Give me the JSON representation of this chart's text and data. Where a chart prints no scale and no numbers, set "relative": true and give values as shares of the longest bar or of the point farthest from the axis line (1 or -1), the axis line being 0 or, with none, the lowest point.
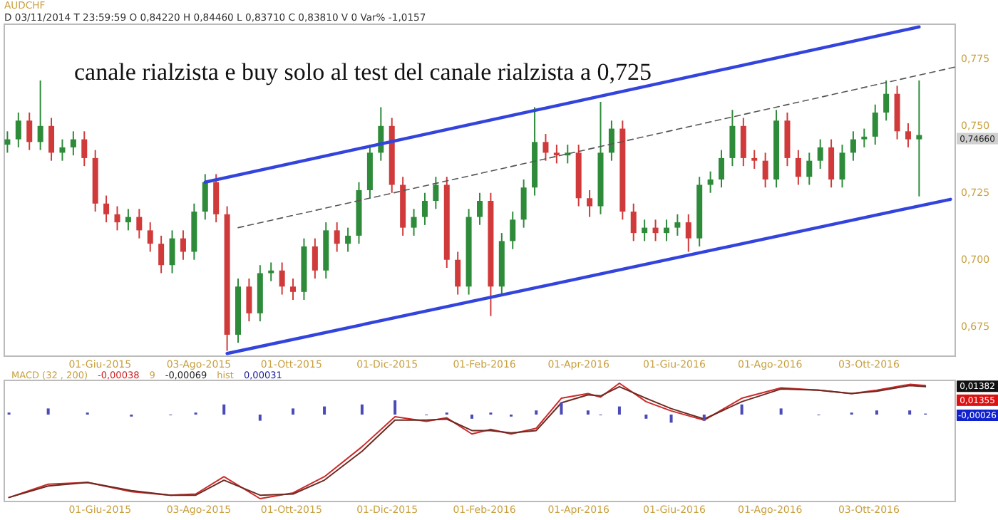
{
  "chart_data": [
    {
      "type": "candlestick",
      "title": "canale rialzista e buy solo al test del canale rialzista a 0,725",
      "annotations": [
        "AUDCHF",
        "D 03/11/2014 T 23:59:59 O 0,84220 H 0,84460 L 0,83710 C 0,83810 V 0 Var% -1,0157",
        "0,74660"
      ],
      "x": [
        "2015-04-03",
        "2015-04-10",
        "2015-04-17",
        "2015-04-24",
        "2015-05-01",
        "2015-05-08",
        "2015-05-15",
        "2015-05-22",
        "2015-05-29",
        "2015-06-05",
        "2015-06-12",
        "2015-06-19",
        "2015-06-26",
        "2015-07-03",
        "2015-07-10",
        "2015-07-17",
        "2015-07-24",
        "2015-07-31",
        "2015-08-07",
        "2015-08-14",
        "2015-08-21",
        "2015-08-28",
        "2015-09-04",
        "2015-09-11",
        "2015-09-18",
        "2015-09-25",
        "2015-10-02",
        "2015-10-09",
        "2015-10-16",
        "2015-10-23",
        "2015-10-30",
        "2015-11-06",
        "2015-11-13",
        "2015-11-20",
        "2015-11-27",
        "2015-12-04",
        "2015-12-11",
        "2015-12-18",
        "2015-12-25",
        "2016-01-01",
        "2016-01-08",
        "2016-01-15",
        "2016-01-22",
        "2016-01-29",
        "2016-02-05",
        "2016-02-12",
        "2016-02-19",
        "2016-02-26",
        "2016-03-04",
        "2016-03-11",
        "2016-03-18",
        "2016-03-25",
        "2016-04-01",
        "2016-04-08",
        "2016-04-15",
        "2016-04-22",
        "2016-04-29",
        "2016-05-06",
        "2016-05-13",
        "2016-05-20",
        "2016-05-27",
        "2016-06-03",
        "2016-06-10",
        "2016-06-17",
        "2016-06-24",
        "2016-07-01",
        "2016-07-08",
        "2016-07-15",
        "2016-07-22",
        "2016-07-29",
        "2016-08-05",
        "2016-08-12",
        "2016-08-19",
        "2016-08-26",
        "2016-09-02",
        "2016-09-09",
        "2016-09-16",
        "2016-09-23",
        "2016-09-30",
        "2016-10-07",
        "2016-10-14",
        "2016-10-21",
        "2016-10-28",
        "2016-11-04"
      ],
      "ohlc": [
        [
          0.743,
          0.748,
          0.74,
          0.745
        ],
        [
          0.745,
          0.755,
          0.742,
          0.752
        ],
        [
          0.752,
          0.755,
          0.741,
          0.744
        ],
        [
          0.744,
          0.767,
          0.741,
          0.75
        ],
        [
          0.75,
          0.753,
          0.737,
          0.74
        ],
        [
          0.74,
          0.745,
          0.737,
          0.742
        ],
        [
          0.742,
          0.748,
          0.739,
          0.745
        ],
        [
          0.745,
          0.748,
          0.735,
          0.738
        ],
        [
          0.738,
          0.741,
          0.718,
          0.721
        ],
        [
          0.721,
          0.724,
          0.714,
          0.717
        ],
        [
          0.717,
          0.72,
          0.711,
          0.714
        ],
        [
          0.714,
          0.719,
          0.711,
          0.716
        ],
        [
          0.716,
          0.719,
          0.708,
          0.711
        ],
        [
          0.711,
          0.714,
          0.703,
          0.706
        ],
        [
          0.706,
          0.709,
          0.695,
          0.698
        ],
        [
          0.698,
          0.711,
          0.695,
          0.708
        ],
        [
          0.708,
          0.711,
          0.7,
          0.703
        ],
        [
          0.703,
          0.721,
          0.7,
          0.718
        ],
        [
          0.718,
          0.732,
          0.715,
          0.729
        ],
        [
          0.729,
          0.732,
          0.714,
          0.717
        ],
        [
          0.717,
          0.72,
          0.666,
          0.672
        ],
        [
          0.672,
          0.693,
          0.669,
          0.69
        ],
        [
          0.69,
          0.693,
          0.677,
          0.68
        ],
        [
          0.68,
          0.698,
          0.677,
          0.695
        ],
        [
          0.695,
          0.699,
          0.692,
          0.696
        ],
        [
          0.696,
          0.699,
          0.687,
          0.69
        ],
        [
          0.69,
          0.693,
          0.685,
          0.688
        ],
        [
          0.688,
          0.708,
          0.685,
          0.705
        ],
        [
          0.705,
          0.708,
          0.693,
          0.696
        ],
        [
          0.696,
          0.714,
          0.693,
          0.711
        ],
        [
          0.711,
          0.714,
          0.703,
          0.706
        ],
        [
          0.706,
          0.712,
          0.703,
          0.709
        ],
        [
          0.709,
          0.729,
          0.706,
          0.726
        ],
        [
          0.726,
          0.743,
          0.723,
          0.74
        ],
        [
          0.74,
          0.757,
          0.737,
          0.75
        ],
        [
          0.75,
          0.753,
          0.725,
          0.728
        ],
        [
          0.728,
          0.731,
          0.709,
          0.712
        ],
        [
          0.712,
          0.719,
          0.709,
          0.716
        ],
        [
          0.716,
          0.725,
          0.713,
          0.722
        ],
        [
          0.722,
          0.731,
          0.719,
          0.728
        ],
        [
          0.728,
          0.731,
          0.697,
          0.7
        ],
        [
          0.7,
          0.703,
          0.687,
          0.69
        ],
        [
          0.69,
          0.719,
          0.687,
          0.716
        ],
        [
          0.716,
          0.725,
          0.713,
          0.722
        ],
        [
          0.722,
          0.725,
          0.679,
          0.69
        ],
        [
          0.69,
          0.71,
          0.687,
          0.707
        ],
        [
          0.707,
          0.718,
          0.704,
          0.715
        ],
        [
          0.715,
          0.73,
          0.712,
          0.727
        ],
        [
          0.727,
          0.757,
          0.724,
          0.744
        ],
        [
          0.744,
          0.747,
          0.737,
          0.74
        ],
        [
          0.74,
          0.743,
          0.736,
          0.739
        ],
        [
          0.739,
          0.743,
          0.736,
          0.74
        ],
        [
          0.74,
          0.743,
          0.72,
          0.723
        ],
        [
          0.723,
          0.726,
          0.716,
          0.72
        ],
        [
          0.72,
          0.759,
          0.717,
          0.74
        ],
        [
          0.74,
          0.752,
          0.737,
          0.749
        ],
        [
          0.749,
          0.752,
          0.715,
          0.718
        ],
        [
          0.718,
          0.721,
          0.707,
          0.71
        ],
        [
          0.71,
          0.715,
          0.707,
          0.712
        ],
        [
          0.712,
          0.715,
          0.707,
          0.71
        ],
        [
          0.71,
          0.715,
          0.707,
          0.712
        ],
        [
          0.712,
          0.717,
          0.709,
          0.714
        ],
        [
          0.714,
          0.717,
          0.703,
          0.708
        ],
        [
          0.708,
          0.731,
          0.705,
          0.728
        ],
        [
          0.728,
          0.733,
          0.725,
          0.73
        ],
        [
          0.73,
          0.741,
          0.727,
          0.738
        ],
        [
          0.738,
          0.756,
          0.735,
          0.75
        ],
        [
          0.75,
          0.753,
          0.735,
          0.738
        ],
        [
          0.738,
          0.741,
          0.734,
          0.737
        ],
        [
          0.737,
          0.74,
          0.727,
          0.73
        ],
        [
          0.73,
          0.756,
          0.727,
          0.752
        ],
        [
          0.752,
          0.755,
          0.735,
          0.738
        ],
        [
          0.738,
          0.741,
          0.728,
          0.731
        ],
        [
          0.731,
          0.74,
          0.728,
          0.737
        ],
        [
          0.737,
          0.745,
          0.734,
          0.742
        ],
        [
          0.742,
          0.745,
          0.727,
          0.73
        ],
        [
          0.73,
          0.743,
          0.727,
          0.74
        ],
        [
          0.74,
          0.748,
          0.737,
          0.745
        ],
        [
          0.745,
          0.749,
          0.742,
          0.746
        ],
        [
          0.746,
          0.758,
          0.743,
          0.755
        ],
        [
          0.755,
          0.767,
          0.752,
          0.762
        ],
        [
          0.762,
          0.765,
          0.745,
          0.748
        ],
        [
          0.748,
          0.751,
          0.742,
          0.745
        ],
        [
          0.745,
          0.767,
          0.7237,
          0.7466
        ]
      ],
      "series": [
        {
          "type": "line",
          "color": "#3344dd",
          "x": [
            "2015-08-07",
            "2016-11-04"
          ],
          "values": [
            0.729,
            0.787
          ]
        },
        {
          "type": "line",
          "color": "#3344dd",
          "x": [
            "2015-08-21",
            "2016-11-24"
          ],
          "values": [
            0.665,
            0.7226
          ]
        },
        {
          "type": "line",
          "color": "#555555",
          "line_style": "dashed",
          "x": [
            "2015-08-28",
            "2016-11-27"
          ],
          "values": [
            0.712,
            0.772
          ]
        }
      ],
      "xlim": [
        "2015-04-01",
        "2016-11-27"
      ],
      "ylim": [
        0.664,
        0.788
      ],
      "xticks": [
        {
          "value": "2015-06-01",
          "label": "01-Giu-2015"
        },
        {
          "value": "2015-08-03",
          "label": "03-Ago-2015"
        },
        {
          "value": "2015-10-01",
          "label": "01-Ott-2015"
        },
        {
          "value": "2015-12-01",
          "label": "01-Dic-2015"
        },
        {
          "value": "2016-02-01",
          "label": "01-Feb-2016"
        },
        {
          "value": "2016-04-01",
          "label": "01-Apr-2016"
        },
        {
          "value": "2016-06-01",
          "label": "01-Giu-2016"
        },
        {
          "value": "2016-08-01",
          "label": "01-Ago-2016"
        },
        {
          "value": "2016-10-03",
          "label": "03-Ott-2016"
        }
      ],
      "yticks": [
        {
          "value": 0.675,
          "label": "0,675"
        },
        {
          "value": 0.7,
          "label": "0,700"
        },
        {
          "value": 0.725,
          "label": "0,725"
        },
        {
          "value": 0.75,
          "label": "0,750"
        },
        {
          "value": 0.775,
          "label": "0,775"
        }
      ]
    },
    {
      "type": "line",
      "relative": true,
      "tick_labels": "x",
      "annotations": [
        "MACD (32 , 200)",
        "-0,00038",
        "9",
        "-0,00069",
        "hist",
        "0,00031",
        "0,01382",
        "0,01355"
      ],
      "series": [
        {
          "color": "#cc2a2a",
          "x": [
            "2015-04-04",
            "2015-04-29",
            "2015-05-24",
            "2015-06-21",
            "2015-07-16",
            "2015-08-01",
            "2015-08-19",
            "2015-09-11",
            "2015-10-02",
            "2015-10-22",
            "2015-11-15",
            "2015-12-06",
            "2015-12-26",
            "2016-01-08",
            "2016-01-24",
            "2016-02-05",
            "2016-02-18",
            "2016-03-05",
            "2016-03-21",
            "2016-04-07",
            "2016-04-15",
            "2016-04-27",
            "2016-05-14",
            "2016-05-30",
            "2016-06-20",
            "2016-07-14",
            "2016-08-08",
            "2016-09-01",
            "2016-09-22",
            "2016-10-08",
            "2016-10-29",
            "2016-11-08"
          ],
          "values": [
            0.01,
            0.125,
            0.14,
            0.06,
            0.03,
            0.04,
            0.19,
            0.0,
            0.05,
            0.19,
            0.45,
            0.71,
            0.67,
            0.7,
            0.56,
            0.6,
            0.56,
            0.61,
            0.87,
            0.91,
            0.88,
            1.0,
            0.84,
            0.76,
            0.68,
            0.87,
            0.96,
            0.94,
            0.91,
            0.94,
            0.99,
            0.98
          ]
        },
        {
          "color": "#6b2a22",
          "x": [
            "2015-04-04",
            "2015-04-29",
            "2015-05-24",
            "2015-06-21",
            "2015-07-16",
            "2015-08-01",
            "2015-08-19",
            "2015-09-11",
            "2015-10-02",
            "2015-10-22",
            "2015-11-15",
            "2015-12-06",
            "2015-12-26",
            "2016-01-08",
            "2016-01-24",
            "2016-02-05",
            "2016-02-18",
            "2016-03-05",
            "2016-03-21",
            "2016-04-07",
            "2016-04-15",
            "2016-04-27",
            "2016-05-14",
            "2016-05-30",
            "2016-06-20",
            "2016-07-14",
            "2016-08-08",
            "2016-09-01",
            "2016-09-22",
            "2016-10-08",
            "2016-10-29",
            "2016-11-08"
          ],
          "values": [
            0.01,
            0.11,
            0.14,
            0.07,
            0.03,
            0.03,
            0.16,
            0.03,
            0.04,
            0.16,
            0.41,
            0.68,
            0.68,
            0.69,
            0.59,
            0.59,
            0.57,
            0.59,
            0.83,
            0.9,
            0.89,
            0.97,
            0.87,
            0.78,
            0.69,
            0.84,
            0.95,
            0.94,
            0.91,
            0.93,
            0.98,
            0.97
          ]
        }
      ],
      "xlim": [
        "2015-04-01",
        "2016-11-27"
      ],
      "xticks": [
        {
          "value": "2015-06-01",
          "label": "01-Giu-2015"
        },
        {
          "value": "2015-08-03",
          "label": "03-Ago-2015"
        },
        {
          "value": "2015-10-01",
          "label": "01-Ott-2015"
        },
        {
          "value": "2015-12-01",
          "label": "01-Dic-2015"
        },
        {
          "value": "2016-02-01",
          "label": "01-Feb-2016"
        },
        {
          "value": "2016-04-01",
          "label": "01-Apr-2016"
        },
        {
          "value": "2016-06-01",
          "label": "01-Giu-2016"
        },
        {
          "value": "2016-08-01",
          "label": "01-Ago-2016"
        },
        {
          "value": "2016-10-03",
          "label": "03-Ott-2016"
        }
      ]
    },
    {
      "type": "bar",
      "relative": true,
      "tick_labels": false,
      "xlim": [
        "2015-04-01",
        "2016-11-27"
      ],
      "annotations": [
        "-0,00026"
      ],
      "series": [
        {
          "color": "#4a4ab8",
          "x": [
            "2015-04-04",
            "2015-04-29",
            "2015-05-24",
            "2015-06-21",
            "2015-07-16",
            "2015-08-01",
            "2015-08-19",
            "2015-09-11",
            "2015-10-02",
            "2015-10-22",
            "2015-11-15",
            "2015-12-06",
            "2015-12-26",
            "2016-01-08",
            "2016-01-24",
            "2016-02-05",
            "2016-02-18",
            "2016-03-05",
            "2016-03-21",
            "2016-04-07",
            "2016-04-15",
            "2016-04-27",
            "2016-05-14",
            "2016-05-30",
            "2016-06-20",
            "2016-07-14",
            "2016-08-08",
            "2016-09-01",
            "2016-09-22",
            "2016-10-08",
            "2016-10-29",
            "2016-11-08"
          ],
          "values": [
            0.14,
            0.43,
            0.14,
            -0.14,
            0,
            0.14,
            0.71,
            -0.43,
            0.43,
            0.57,
            0.71,
            1,
            0,
            0.14,
            -0.29,
            0.14,
            -0.14,
            0.29,
            0.86,
            0.29,
            0,
            0.57,
            -0.29,
            -0.57,
            -0.43,
            0.71,
            0.43,
            0,
            0.14,
            0.29,
            0.29,
            0.07
          ]
        }
      ]
    }
  ]
}
